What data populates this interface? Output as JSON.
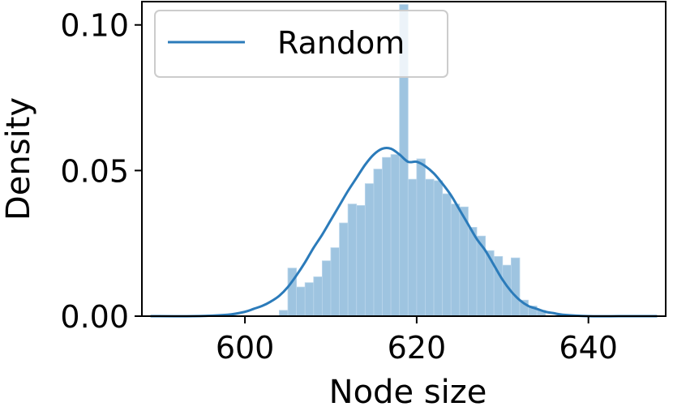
{
  "chart_data": {
    "type": "bar",
    "overlay": "line",
    "xlabel": "Node size",
    "ylabel": "Density",
    "xlim": [
      588,
      649
    ],
    "ylim": [
      0,
      0.108
    ],
    "xticks": [
      {
        "value": 600,
        "label": "600"
      },
      {
        "value": 620,
        "label": "620"
      },
      {
        "value": 640,
        "label": "640"
      }
    ],
    "yticks": [
      {
        "value": 0.0,
        "label": "0.00"
      },
      {
        "value": 0.05,
        "label": "0.05"
      },
      {
        "value": 0.1,
        "label": "0.10"
      }
    ],
    "grid": false,
    "legend": {
      "position": "top-left",
      "entries": [
        "Random"
      ]
    },
    "bin_width": 1,
    "bins": [
      {
        "x": 604,
        "density": 0.002
      },
      {
        "x": 605,
        "density": 0.0165
      },
      {
        "x": 606,
        "density": 0.01
      },
      {
        "x": 607,
        "density": 0.0115
      },
      {
        "x": 608,
        "density": 0.0135
      },
      {
        "x": 609,
        "density": 0.019
      },
      {
        "x": 610,
        "density": 0.0235
      },
      {
        "x": 611,
        "density": 0.032
      },
      {
        "x": 612,
        "density": 0.0385
      },
      {
        "x": 613,
        "density": 0.038
      },
      {
        "x": 614,
        "density": 0.0455
      },
      {
        "x": 615,
        "density": 0.0505
      },
      {
        "x": 616,
        "density": 0.0545
      },
      {
        "x": 617,
        "density": 0.0555
      },
      {
        "x": 618,
        "density": 0.107
      },
      {
        "x": 619,
        "density": 0.047
      },
      {
        "x": 620,
        "density": 0.054
      },
      {
        "x": 621,
        "density": 0.047
      },
      {
        "x": 622,
        "density": 0.0465
      },
      {
        "x": 623,
        "density": 0.042
      },
      {
        "x": 624,
        "density": 0.0385
      },
      {
        "x": 625,
        "density": 0.0375
      },
      {
        "x": 626,
        "density": 0.0305
      },
      {
        "x": 627,
        "density": 0.0275
      },
      {
        "x": 628,
        "density": 0.0225
      },
      {
        "x": 629,
        "density": 0.0205
      },
      {
        "x": 630,
        "density": 0.0175
      },
      {
        "x": 631,
        "density": 0.02
      },
      {
        "x": 632,
        "density": 0.0055
      },
      {
        "x": 633,
        "density": 0.0035
      },
      {
        "x": 634,
        "density": 0.002
      }
    ],
    "series": [
      {
        "name": "Random",
        "color": "#2b7bba",
        "x": [
          589,
          594,
          598,
          600,
          601,
          602,
          603,
          604,
          605,
          606,
          607,
          608,
          609,
          610,
          611,
          612,
          613,
          614,
          615,
          616,
          617,
          618,
          619,
          620,
          621,
          622,
          623,
          624,
          625,
          626,
          627,
          628,
          629,
          630,
          631,
          632,
          633,
          634,
          635,
          636,
          637,
          640,
          644,
          648
        ],
        "y": [
          0.0,
          0.0,
          0.0005,
          0.0015,
          0.0025,
          0.0035,
          0.005,
          0.007,
          0.01,
          0.014,
          0.0185,
          0.0235,
          0.028,
          0.033,
          0.038,
          0.043,
          0.0475,
          0.052,
          0.0555,
          0.0575,
          0.0575,
          0.0555,
          0.053,
          0.053,
          0.0515,
          0.049,
          0.0455,
          0.0415,
          0.0365,
          0.0315,
          0.0265,
          0.0225,
          0.0175,
          0.0125,
          0.0085,
          0.0055,
          0.0035,
          0.0025,
          0.0015,
          0.001,
          0.0005,
          0.0,
          0.0,
          0.0
        ]
      }
    ],
    "bar_color": "#9ec4e0",
    "frame_color": "#000000"
  }
}
